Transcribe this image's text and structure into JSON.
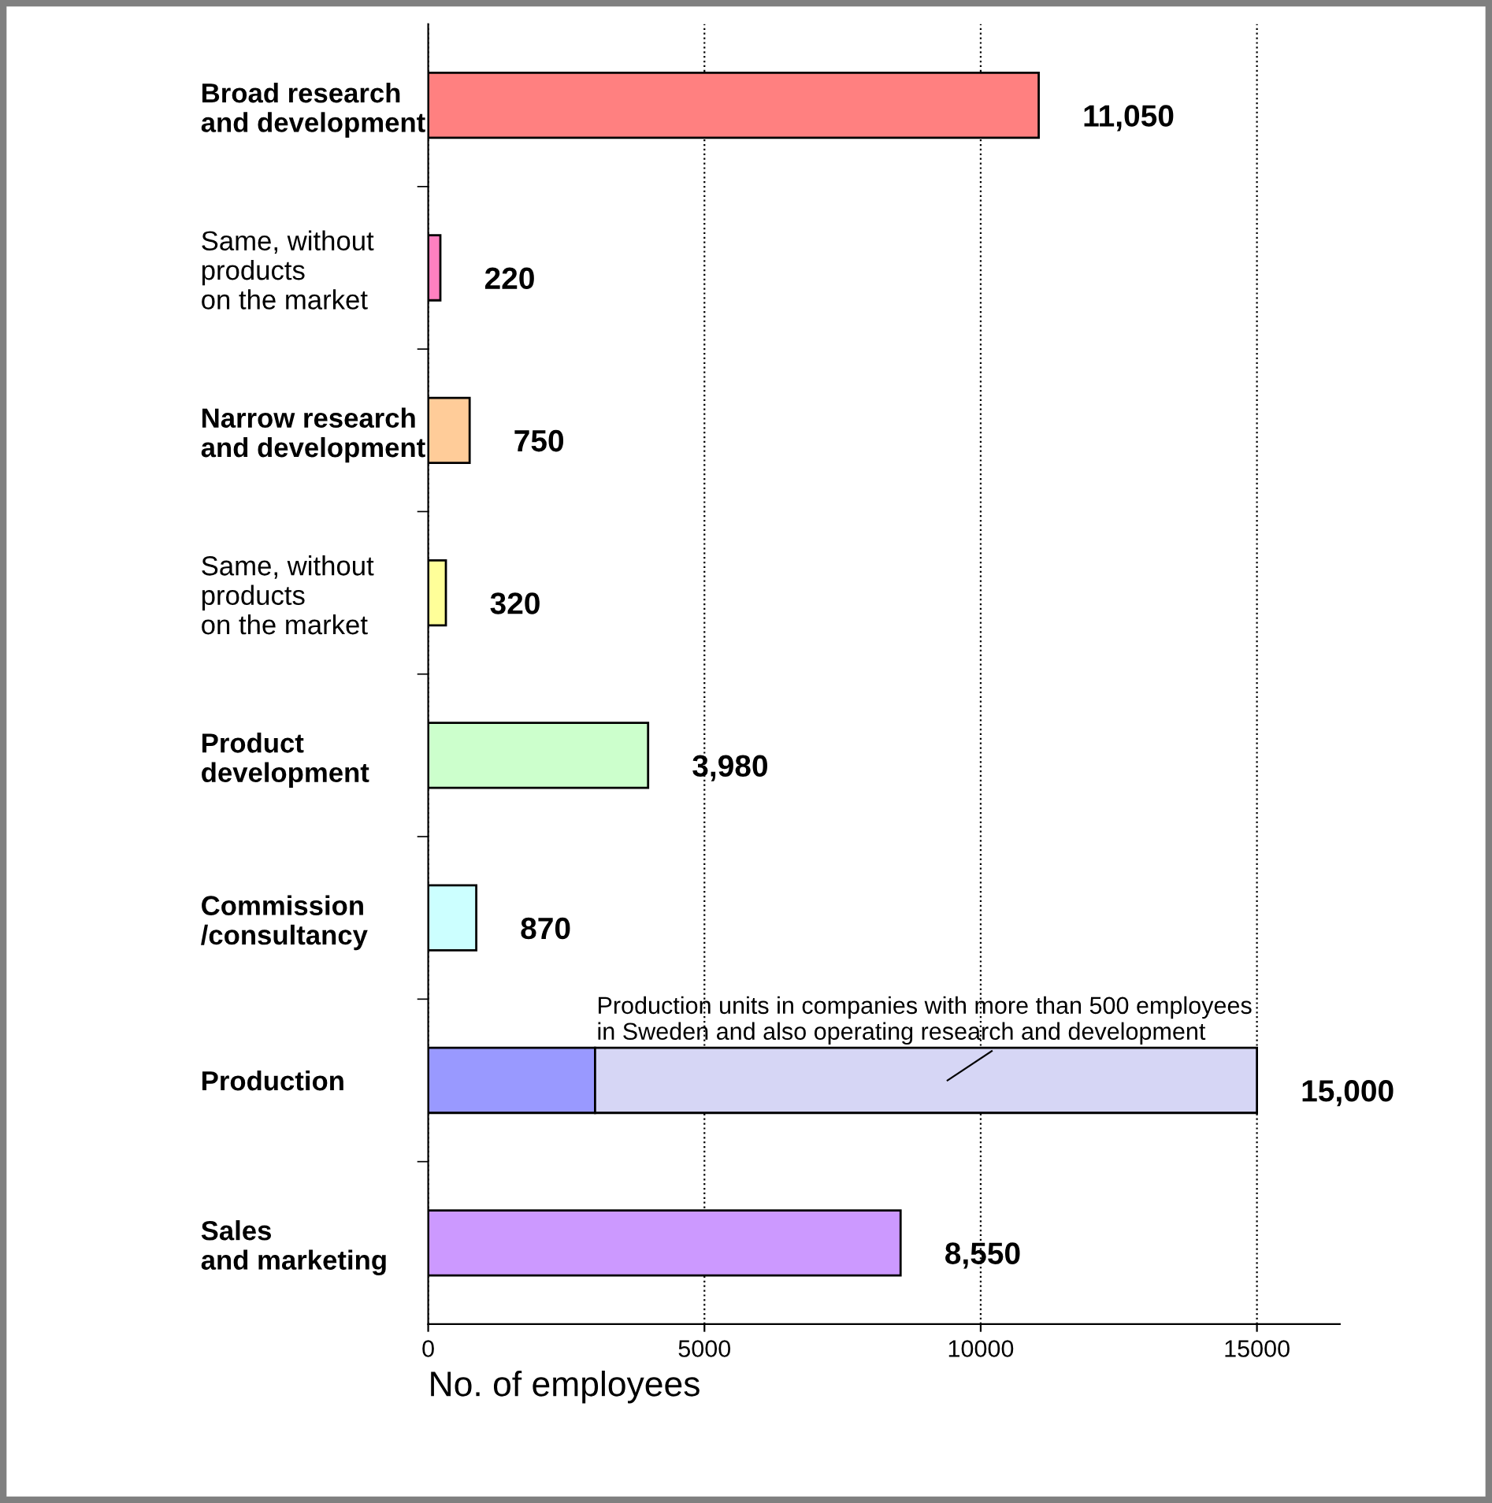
{
  "chart_data": {
    "type": "bar",
    "orientation": "horizontal",
    "stacked": true,
    "categories": [
      "Broad research\nand development",
      "Same, without\nproducts\non the market",
      "Narrow research\nand development",
      "Same, without\nproducts\non the market",
      "Product\ndevelopment",
      "Commission\n/consultancy",
      "Production",
      "Sales\nand marketing"
    ],
    "series": [
      {
        "colors": [
          "#ff8080",
          "#ff80c0",
          "#ffcc99",
          "#ffff99",
          "#ccffcc",
          "#ccffff",
          "#9999ff",
          "#cc99ff"
        ],
        "values": [
          11050,
          220,
          750,
          320,
          3980,
          870,
          3020,
          8550
        ]
      },
      {
        "color": "#d6d6f5",
        "values": [
          null,
          null,
          null,
          null,
          null,
          null,
          11980,
          null
        ]
      }
    ],
    "totals": [
      "11,050",
      "220",
      "750",
      "320",
      "3,980",
      "870",
      "15,000",
      "8,550"
    ],
    "xlabel": "No. of employees",
    "xlim": [
      0,
      16500
    ],
    "xticks": [
      0,
      5000,
      10000,
      15000
    ],
    "grid": "x",
    "annotations": [
      "Production units in companies with more than 500 employees\nin Sweden and also operating research and development"
    ]
  }
}
